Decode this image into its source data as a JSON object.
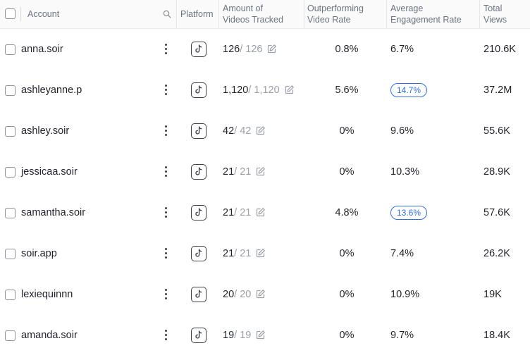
{
  "header": {
    "account": "Account",
    "platform": "Platform",
    "videos_tracked": [
      "Amount of",
      "Videos Tracked"
    ],
    "outperforming": [
      "Outperforming",
      "Video Rate"
    ],
    "engagement": [
      "Average",
      "Engagement Rate"
    ],
    "views": [
      "Total",
      "Views"
    ]
  },
  "rows": [
    {
      "account": "anna.soir",
      "platform": "tiktok",
      "tracked": "126",
      "tracked_total": "/ 126",
      "outperforming": "0.8%",
      "engagement": "6.7%",
      "engagement_highlight": false,
      "views": "210.6K"
    },
    {
      "account": "ashleyanne.p",
      "platform": "tiktok",
      "tracked": "1,120",
      "tracked_total": "/ 1,120",
      "outperforming": "5.6%",
      "engagement": "14.7%",
      "engagement_highlight": true,
      "views": "37.2M"
    },
    {
      "account": "ashley.soir",
      "platform": "tiktok",
      "tracked": "42",
      "tracked_total": "/ 42",
      "outperforming": "0%",
      "engagement": "9.6%",
      "engagement_highlight": false,
      "views": "55.6K"
    },
    {
      "account": "jessicaa.soir",
      "platform": "tiktok",
      "tracked": "21",
      "tracked_total": "/ 21",
      "outperforming": "0%",
      "engagement": "10.3%",
      "engagement_highlight": false,
      "views": "28.9K"
    },
    {
      "account": "samantha.soir",
      "platform": "tiktok",
      "tracked": "21",
      "tracked_total": "/ 21",
      "outperforming": "4.8%",
      "engagement": "13.6%",
      "engagement_highlight": true,
      "views": "57.6K"
    },
    {
      "account": "soir.app",
      "platform": "tiktok",
      "tracked": "21",
      "tracked_total": "/ 21",
      "outperforming": "0%",
      "engagement": "7.4%",
      "engagement_highlight": false,
      "views": "26.2K"
    },
    {
      "account": "lexiequinnn",
      "platform": "tiktok",
      "tracked": "20",
      "tracked_total": "/ 20",
      "outperforming": "0%",
      "engagement": "10.9%",
      "engagement_highlight": false,
      "views": "19K"
    },
    {
      "account": "amanda.soir",
      "platform": "tiktok",
      "tracked": "19",
      "tracked_total": "/ 19",
      "outperforming": "0%",
      "engagement": "9.7%",
      "engagement_highlight": false,
      "views": "18.4K"
    }
  ],
  "colors": {
    "accent": "#2f6fde",
    "muted": "#9aa0a8",
    "header_bg": "#fafafa"
  },
  "icons": {
    "platform": "tiktok-icon",
    "row_menu": "kebab-menu-icon",
    "edit": "edit-icon",
    "sort": "search-icon"
  }
}
